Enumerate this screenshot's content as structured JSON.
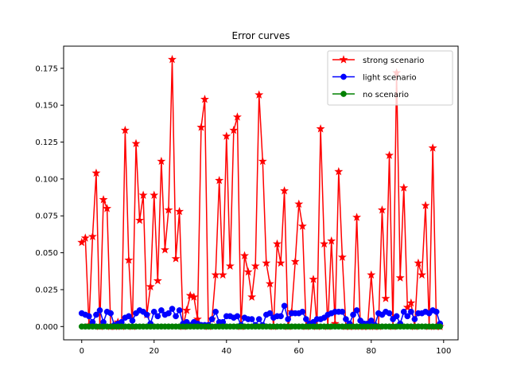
{
  "chart_data": {
    "type": "line",
    "title": "Error curves",
    "xlabel": "",
    "ylabel": "",
    "xlim": [
      -5,
      104
    ],
    "ylim": [
      -0.009,
      0.19
    ],
    "xticks": [
      0,
      20,
      40,
      60,
      80,
      100
    ],
    "xtick_labels": [
      "0",
      "20",
      "40",
      "60",
      "80",
      "100"
    ],
    "yticks": [
      0.0,
      0.025,
      0.05,
      0.075,
      0.1,
      0.125,
      0.15,
      0.175
    ],
    "ytick_labels": [
      "0.000",
      "0.025",
      "0.050",
      "0.075",
      "0.100",
      "0.125",
      "0.150",
      "0.175"
    ],
    "grid": false,
    "legend_position": "top-right",
    "x": [
      0,
      1,
      2,
      3,
      4,
      5,
      6,
      7,
      8,
      9,
      10,
      11,
      12,
      13,
      14,
      15,
      16,
      17,
      18,
      19,
      20,
      21,
      22,
      23,
      24,
      25,
      26,
      27,
      28,
      29,
      30,
      31,
      32,
      33,
      34,
      35,
      36,
      37,
      38,
      39,
      40,
      41,
      42,
      43,
      44,
      45,
      46,
      47,
      48,
      49,
      50,
      51,
      52,
      53,
      54,
      55,
      56,
      57,
      58,
      59,
      60,
      61,
      62,
      63,
      64,
      65,
      66,
      67,
      68,
      69,
      70,
      71,
      72,
      73,
      74,
      75,
      76,
      77,
      78,
      79,
      80,
      81,
      82,
      83,
      84,
      85,
      86,
      87,
      88,
      89,
      90,
      91,
      92,
      93,
      94,
      95,
      96,
      97,
      98,
      99
    ],
    "series": [
      {
        "name": "strong scenario",
        "color": "#ff0000",
        "marker": "star",
        "values": [
          0.057,
          0.06,
          0.001,
          0.061,
          0.104,
          0.0,
          0.086,
          0.08,
          0.0,
          0.0,
          0.003,
          0.0,
          0.133,
          0.045,
          0.0,
          0.124,
          0.072,
          0.089,
          0.008,
          0.027,
          0.089,
          0.031,
          0.112,
          0.052,
          0.079,
          0.181,
          0.046,
          0.078,
          0.0,
          0.011,
          0.021,
          0.02,
          0.005,
          0.135,
          0.154,
          0.0,
          0.005,
          0.035,
          0.099,
          0.035,
          0.129,
          0.041,
          0.133,
          0.142,
          0.0,
          0.048,
          0.037,
          0.02,
          0.041,
          0.157,
          0.112,
          0.043,
          0.029,
          0.0,
          0.056,
          0.043,
          0.092,
          0.0,
          0.01,
          0.044,
          0.083,
          0.068,
          0.0,
          0.002,
          0.032,
          0.0,
          0.134,
          0.056,
          0.0,
          0.058,
          0.002,
          0.105,
          0.047,
          0.0,
          0.0,
          0.0,
          0.074,
          0.0,
          0.0,
          0.0,
          0.035,
          0.0,
          0.0,
          0.079,
          0.019,
          0.116,
          0.0,
          0.172,
          0.033,
          0.094,
          0.013,
          0.016,
          0.0,
          0.043,
          0.035,
          0.082,
          0.0,
          0.121,
          0.0,
          0.0
        ]
      },
      {
        "name": "light scenario",
        "color": "#0000ff",
        "marker": "circle",
        "values": [
          0.009,
          0.008,
          0.007,
          0.003,
          0.008,
          0.011,
          0.003,
          0.01,
          0.009,
          0.001,
          0.002,
          0.003,
          0.006,
          0.007,
          0.004,
          0.009,
          0.011,
          0.01,
          0.008,
          0.002,
          0.01,
          0.007,
          0.011,
          0.008,
          0.009,
          0.012,
          0.007,
          0.011,
          0.002,
          0.003,
          0.001,
          0.003,
          0.002,
          0.001,
          0.001,
          0.001,
          0.005,
          0.01,
          0.003,
          0.003,
          0.007,
          0.007,
          0.006,
          0.007,
          0.001,
          0.006,
          0.005,
          0.005,
          0.001,
          0.005,
          0.001,
          0.008,
          0.009,
          0.006,
          0.007,
          0.007,
          0.014,
          0.005,
          0.009,
          0.009,
          0.009,
          0.01,
          0.005,
          0.002,
          0.003,
          0.005,
          0.005,
          0.006,
          0.008,
          0.009,
          0.01,
          0.01,
          0.01,
          0.005,
          0.002,
          0.008,
          0.011,
          0.004,
          0.002,
          0.002,
          0.004,
          0.001,
          0.009,
          0.008,
          0.01,
          0.009,
          0.005,
          0.007,
          0.002,
          0.01,
          0.007,
          0.01,
          0.005,
          0.009,
          0.009,
          0.01,
          0.009,
          0.011,
          0.01,
          0.002
        ]
      },
      {
        "name": "no scenario",
        "color": "#008000",
        "marker": "circle",
        "values": [
          0.0,
          0.0,
          0.0,
          0.0,
          0.0,
          0.0,
          0.0,
          0.0,
          0.0,
          0.0,
          0.0,
          0.0,
          0.0,
          0.0,
          0.0,
          0.0,
          0.0,
          0.0,
          0.0,
          0.0,
          0.0,
          0.0,
          0.0,
          0.0,
          0.0,
          0.0,
          0.0,
          0.0,
          0.0,
          0.0,
          0.0,
          0.0,
          0.0,
          0.0,
          0.0,
          0.0,
          0.0,
          0.0,
          0.0,
          0.0,
          0.0,
          0.0,
          0.0,
          0.0,
          0.0,
          0.0,
          0.0,
          0.0,
          0.0,
          0.0,
          0.0,
          0.0,
          0.0,
          0.0,
          0.0,
          0.0,
          0.0,
          0.0,
          0.0,
          0.0,
          0.0,
          0.0,
          0.0,
          0.0,
          0.0,
          0.0,
          0.0,
          0.0,
          0.0,
          0.0,
          0.0,
          0.0,
          0.0,
          0.0,
          0.0,
          0.0,
          0.0,
          0.0,
          0.0,
          0.0,
          0.0,
          0.0,
          0.0,
          0.0,
          0.0,
          0.0,
          0.0,
          0.0,
          0.0,
          0.0,
          0.0,
          0.0,
          0.0,
          0.0,
          0.0,
          0.0,
          0.0,
          0.0,
          0.0,
          0.0
        ]
      }
    ]
  }
}
